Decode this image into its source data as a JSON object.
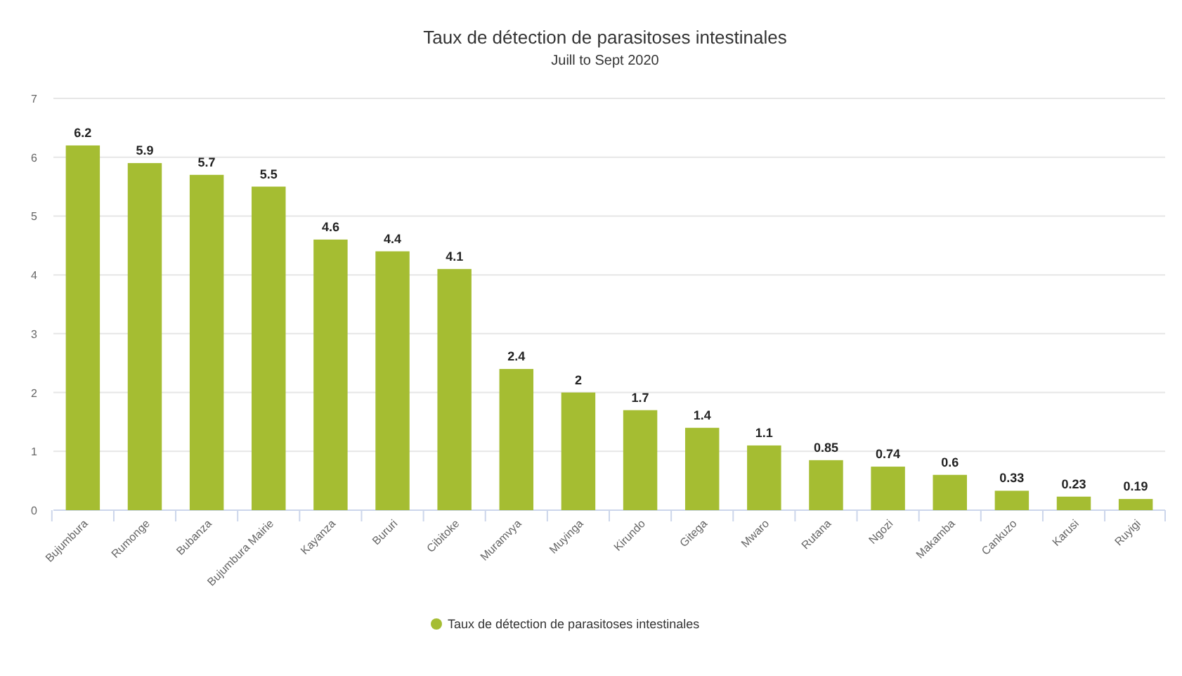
{
  "chart_data": {
    "type": "bar",
    "title": "Taux de détection de parasitoses intestinales",
    "subtitle": "Juill to Sept 2020",
    "categories": [
      "Bujumbura",
      "Rumonge",
      "Bubanza",
      "Bujumbura Mairie",
      "Kayanza",
      "Bururi",
      "Cibitoke",
      "Muramvya",
      "Muyinga",
      "Kirundo",
      "Gitega",
      "Mwaro",
      "Rutana",
      "Ngozi",
      "Makamba",
      "Cankuzo",
      "Karusi",
      "Ruyigi"
    ],
    "series": [
      {
        "name": "Taux de détection de parasitoses intestinales",
        "color": "#a5bd32",
        "values": [
          6.2,
          5.9,
          5.7,
          5.5,
          4.6,
          4.4,
          4.1,
          2.4,
          2,
          1.7,
          1.4,
          1.1,
          0.85,
          0.74,
          0.6,
          0.33,
          0.23,
          0.19
        ]
      }
    ],
    "ylim": [
      0,
      7
    ],
    "yticks": [
      0,
      1,
      2,
      3,
      4,
      5,
      6,
      7
    ],
    "grid": "y",
    "data_labels": true,
    "legend": "bottom"
  }
}
